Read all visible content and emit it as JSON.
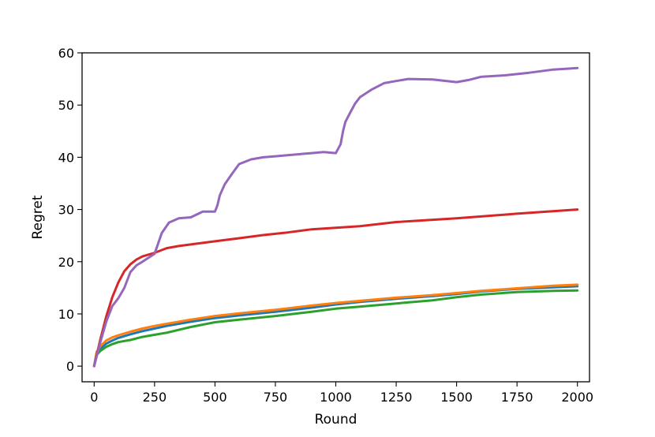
{
  "chart_data": {
    "type": "line",
    "title": "",
    "xlabel": "Round",
    "ylabel": "Regret",
    "xlim": [
      -50,
      2050
    ],
    "ylim": [
      -3,
      60
    ],
    "xticks": [
      0,
      250,
      500,
      750,
      1000,
      1250,
      1500,
      1750,
      2000
    ],
    "yticks": [
      0,
      10,
      20,
      30,
      40,
      50,
      60
    ],
    "grid": false,
    "legend": "none",
    "series": [
      {
        "color": "#1f77b4",
        "x": [
          0,
          10,
          25,
          50,
          75,
          100,
          150,
          200,
          250,
          300,
          400,
          500,
          600,
          750,
          900,
          1000,
          1100,
          1250,
          1400,
          1500,
          1600,
          1750,
          1900,
          2000
        ],
        "y": [
          0,
          2.3,
          3.3,
          4.3,
          4.9,
          5.4,
          6.1,
          6.7,
          7.2,
          7.7,
          8.5,
          9.2,
          9.7,
          10.4,
          11.2,
          11.8,
          12.3,
          12.9,
          13.4,
          13.8,
          14.3,
          14.8,
          15.1,
          15.3
        ]
      },
      {
        "color": "#ff7f0e",
        "x": [
          0,
          10,
          25,
          50,
          75,
          100,
          150,
          200,
          250,
          300,
          400,
          500,
          600,
          750,
          900,
          1000,
          1100,
          1250,
          1400,
          1500,
          1600,
          1750,
          1900,
          2000
        ],
        "y": [
          0,
          2.7,
          3.8,
          4.9,
          5.5,
          5.9,
          6.6,
          7.2,
          7.7,
          8.1,
          8.9,
          9.6,
          10.1,
          10.8,
          11.6,
          12.1,
          12.5,
          13.1,
          13.6,
          14.0,
          14.4,
          14.9,
          15.4,
          15.6
        ]
      },
      {
        "color": "#2ca02c",
        "x": [
          0,
          10,
          25,
          50,
          75,
          100,
          150,
          200,
          250,
          300,
          400,
          500,
          600,
          750,
          900,
          1000,
          1100,
          1250,
          1400,
          1500,
          1600,
          1750,
          1900,
          2000
        ],
        "y": [
          0,
          2.1,
          2.9,
          3.7,
          4.2,
          4.6,
          5.0,
          5.6,
          6.0,
          6.4,
          7.5,
          8.4,
          8.9,
          9.6,
          10.4,
          11.0,
          11.4,
          12.0,
          12.6,
          13.2,
          13.7,
          14.2,
          14.4,
          14.5
        ]
      },
      {
        "color": "#d62728",
        "x": [
          0,
          25,
          50,
          75,
          100,
          125,
          150,
          175,
          200,
          250,
          300,
          350,
          400,
          450,
          500,
          600,
          700,
          800,
          900,
          1000,
          1100,
          1250,
          1500,
          1750,
          2000
        ],
        "y": [
          0,
          5.0,
          9.5,
          13.2,
          16.0,
          18.2,
          19.5,
          20.4,
          21.0,
          21.7,
          22.6,
          23.0,
          23.3,
          23.6,
          23.9,
          24.5,
          25.1,
          25.6,
          26.2,
          26.5,
          26.8,
          27.6,
          28.3,
          29.2,
          30.0
        ]
      },
      {
        "color": "#9467bd",
        "x": [
          0,
          25,
          50,
          75,
          100,
          125,
          150,
          175,
          200,
          250,
          280,
          310,
          350,
          400,
          450,
          500,
          510,
          520,
          540,
          570,
          600,
          650,
          700,
          750,
          800,
          900,
          950,
          1000,
          1020,
          1030,
          1040,
          1060,
          1080,
          1100,
          1150,
          1200,
          1250,
          1300,
          1400,
          1500,
          1550,
          1600,
          1700,
          1800,
          1900,
          2000
        ],
        "y": [
          0,
          4.5,
          8.5,
          11.5,
          13.0,
          15.0,
          18.0,
          19.3,
          20.0,
          21.5,
          25.5,
          27.5,
          28.3,
          28.5,
          29.6,
          29.6,
          30.8,
          32.7,
          34.8,
          36.8,
          38.7,
          39.6,
          40.0,
          40.2,
          40.4,
          40.8,
          41.0,
          40.8,
          42.5,
          45.0,
          46.8,
          48.6,
          50.3,
          51.5,
          53.0,
          54.2,
          54.6,
          55.0,
          54.9,
          54.4,
          54.8,
          55.4,
          55.7,
          56.2,
          56.8,
          57.1
        ]
      }
    ]
  }
}
